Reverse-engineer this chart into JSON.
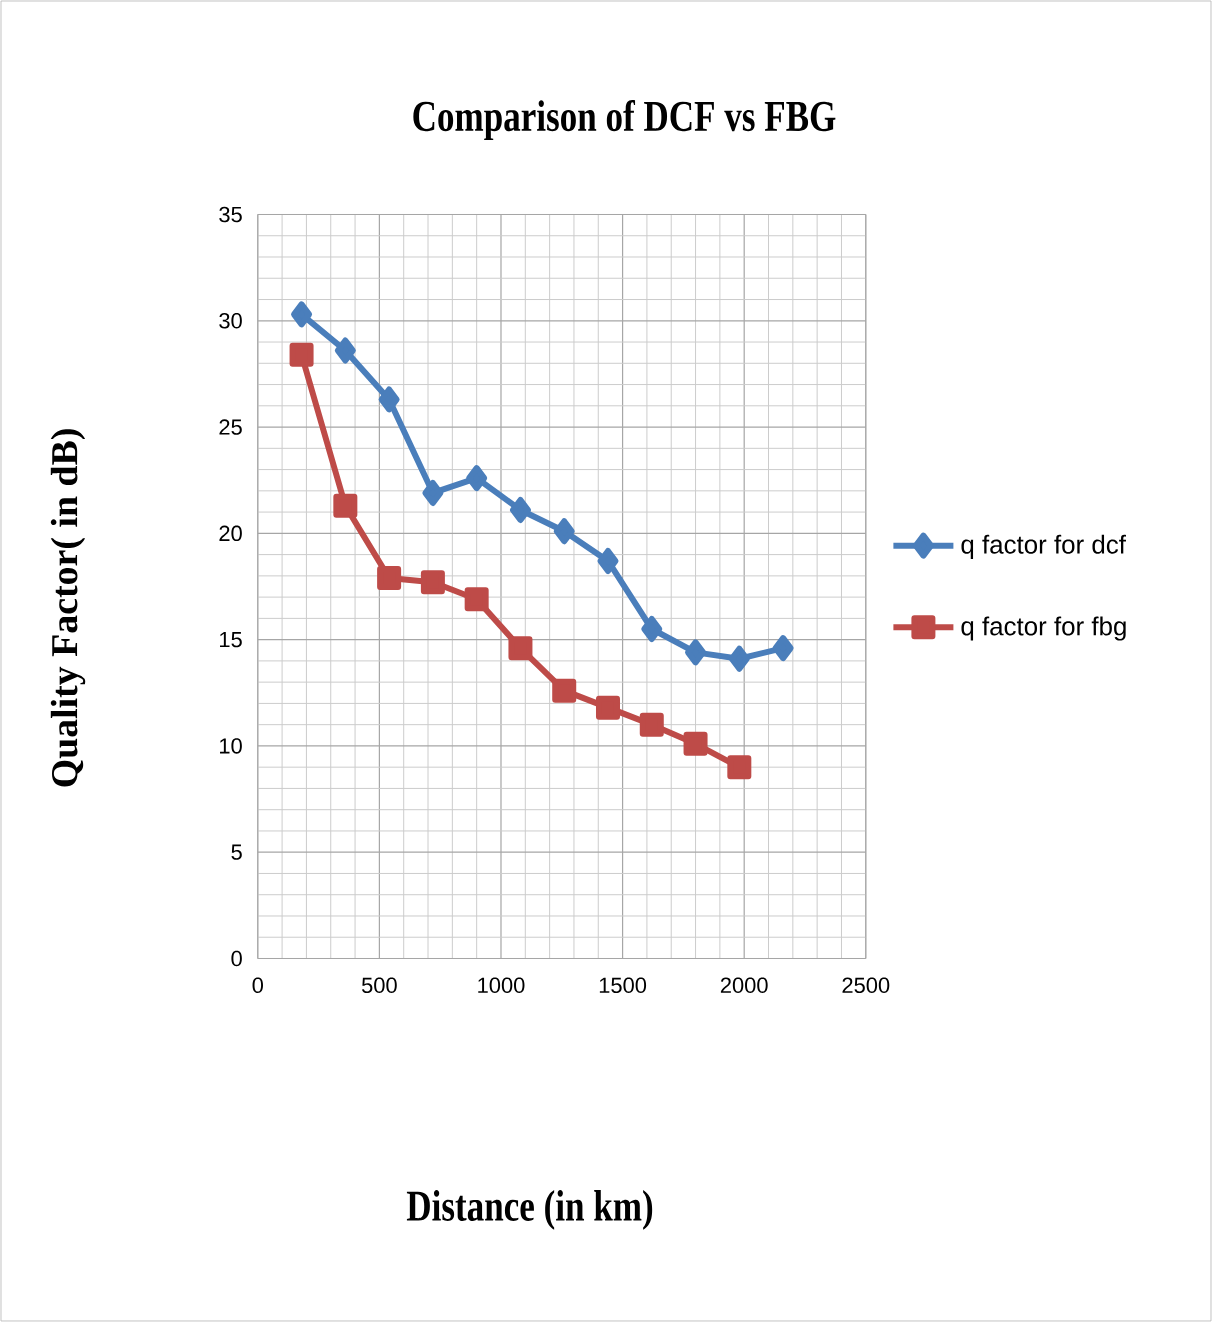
{
  "chart_data": {
    "type": "line",
    "title": "Comparison of DCF vs FBG",
    "xlabel": "Distance (in km)",
    "ylabel": "Quality Factor( in dB)",
    "xlim": [
      0,
      2500
    ],
    "xticks": [
      0,
      500,
      1000,
      1500,
      2000,
      2500
    ],
    "ylim": [
      0,
      35
    ],
    "yticks": [
      0,
      5,
      10,
      15,
      20,
      25,
      30,
      35
    ],
    "grid": true,
    "legend": "right",
    "series": [
      {
        "name": "q factor for dcf",
        "color": "#4a7ebb",
        "marker": "diamond",
        "x": [
          180,
          360,
          540,
          720,
          900,
          1080,
          1260,
          1440,
          1620,
          1800,
          1980,
          2160
        ],
        "values": [
          30.3,
          28.6,
          26.3,
          21.9,
          22.6,
          21.1,
          20.1,
          18.7,
          15.5,
          14.4,
          14.1,
          14.6
        ]
      },
      {
        "name": "q factor for fbg",
        "color": "#be4b48",
        "marker": "square",
        "x": [
          180,
          360,
          540,
          720,
          900,
          1080,
          1260,
          1440,
          1620,
          1800,
          1980
        ],
        "values": [
          28.4,
          21.3,
          17.9,
          17.7,
          16.9,
          14.6,
          12.6,
          11.8,
          11.0,
          10.1,
          9.0
        ]
      }
    ]
  }
}
